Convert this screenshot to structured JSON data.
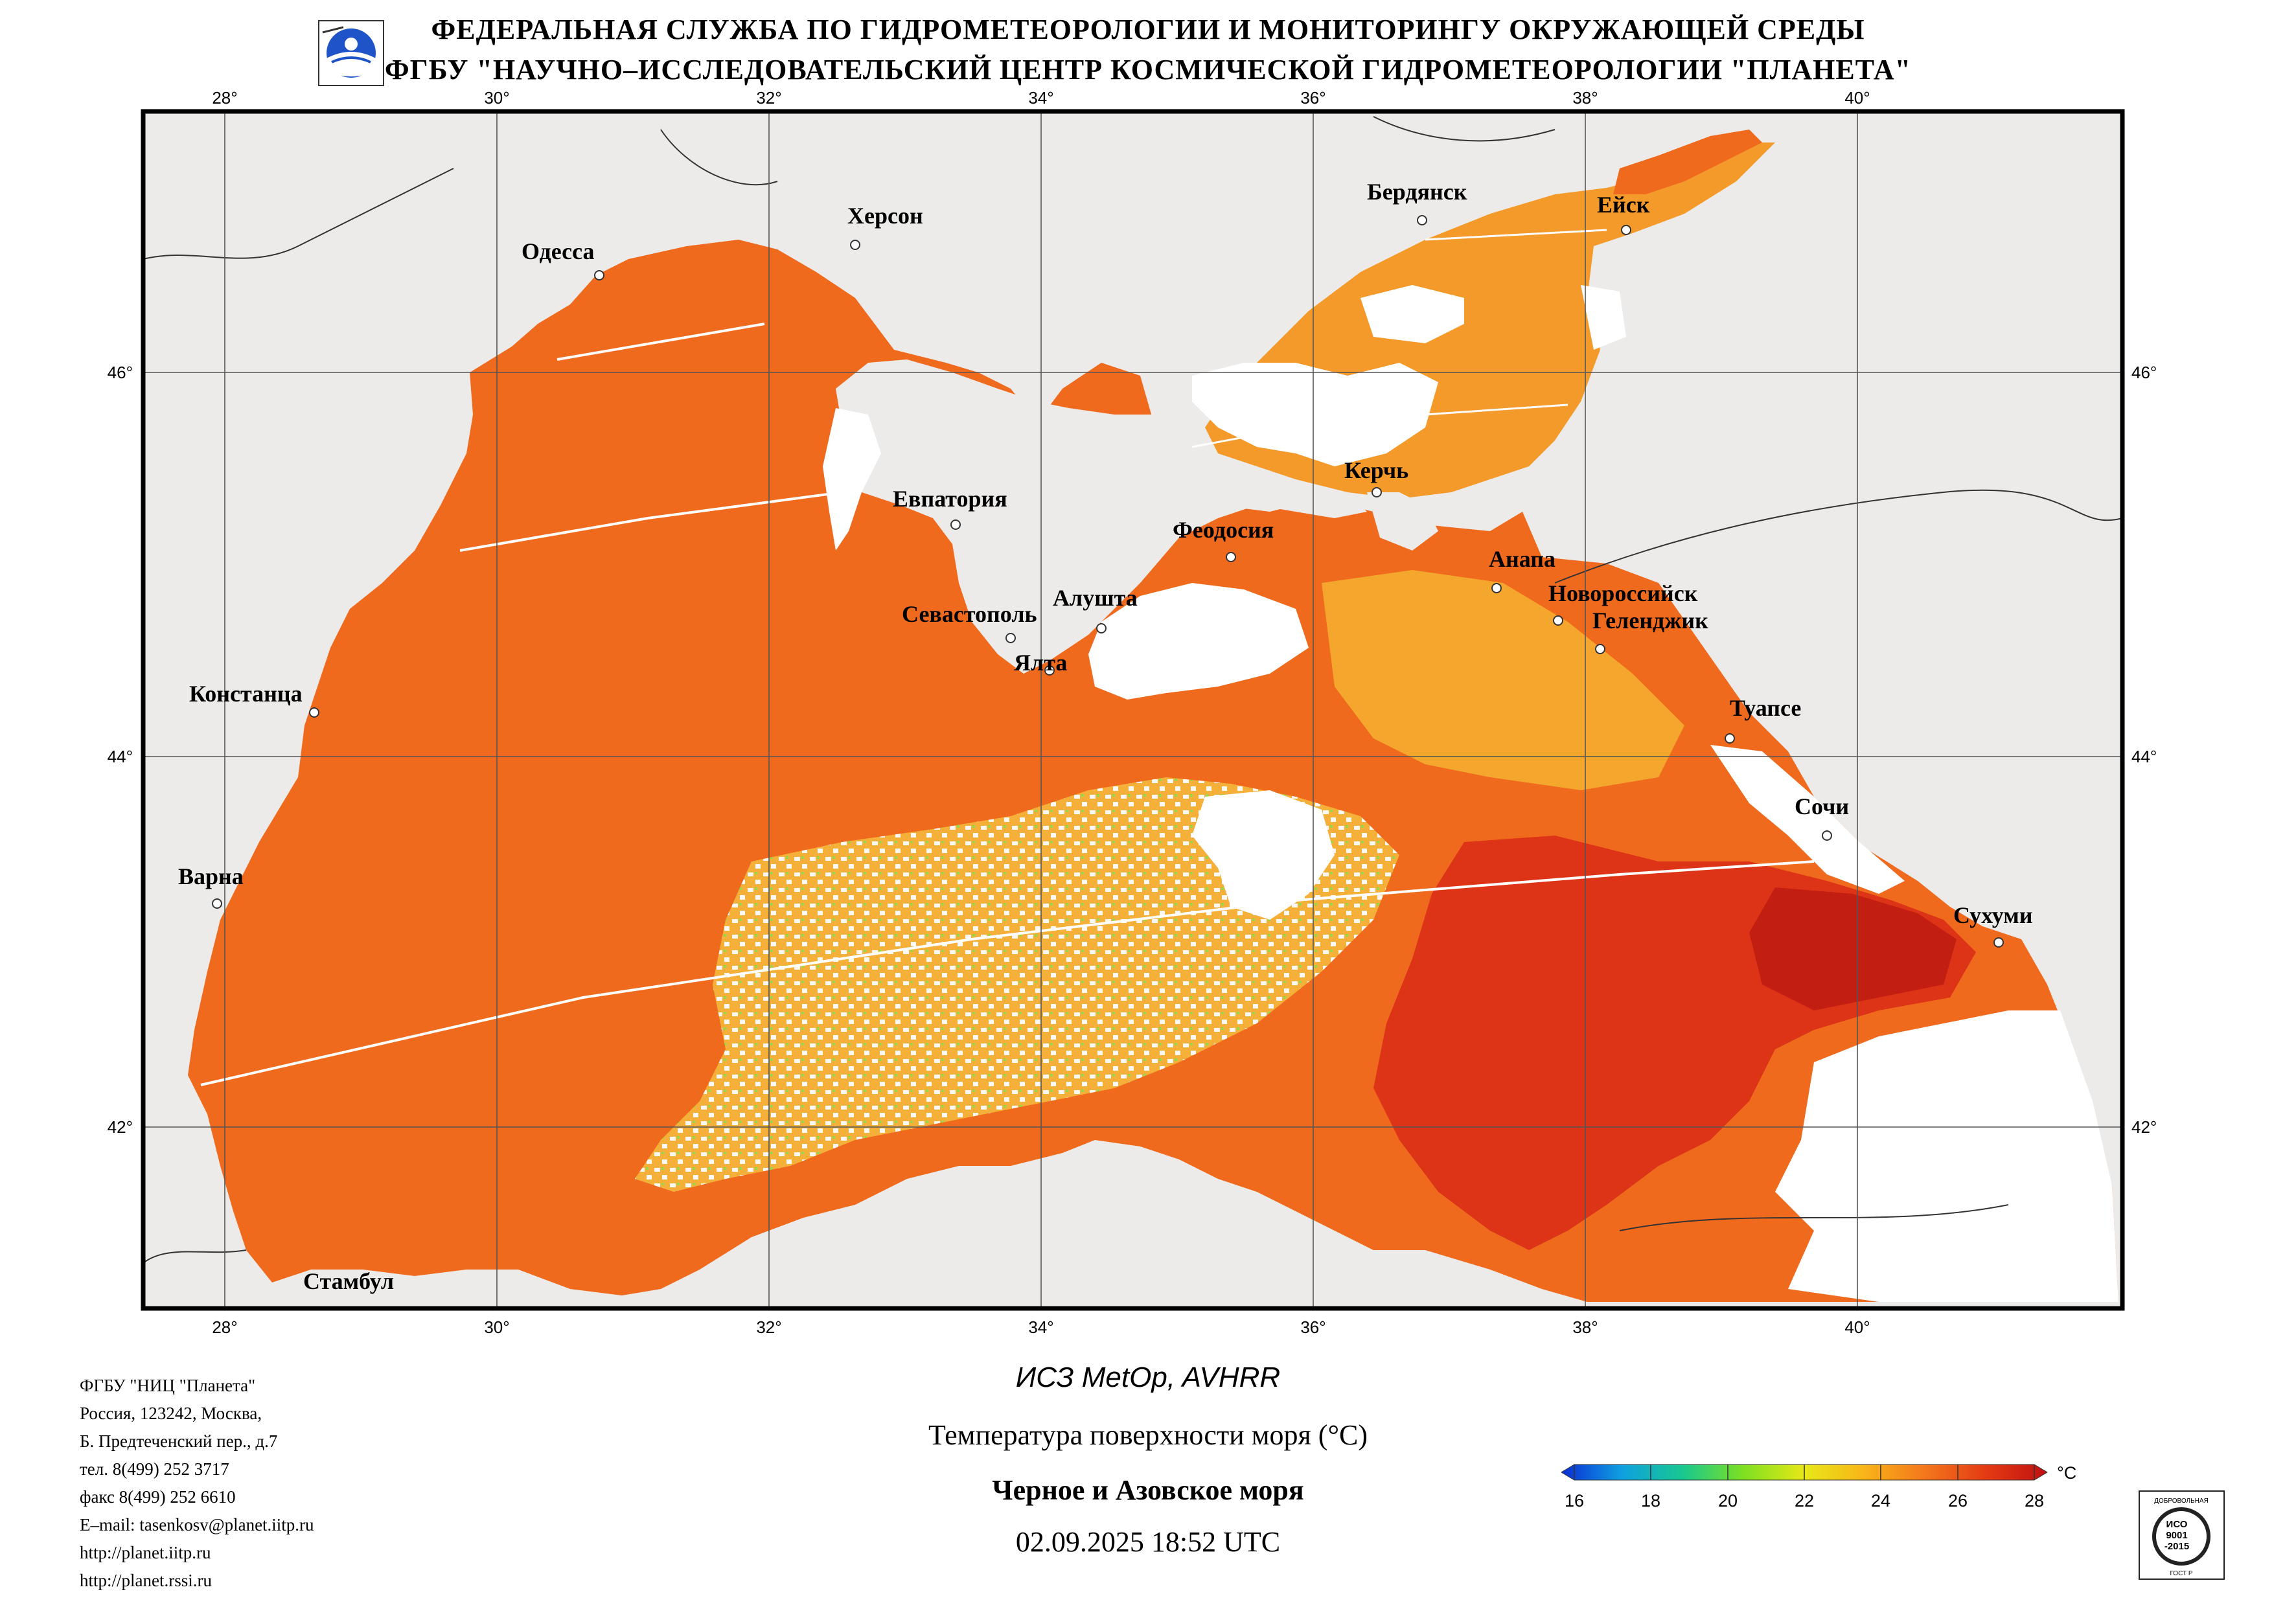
{
  "header": {
    "line1": "ФЕДЕРАЛЬНАЯ СЛУЖБА ПО ГИДРОМЕТЕОРОЛОГИИ И МОНИТОРИНГУ ОКРУЖАЮЩЕЙ СРЕДЫ",
    "line2": "ФГБУ \"НАУЧНО–ИССЛЕДОВАТЕЛЬСКИЙ ЦЕНТР КОСМИЧЕСКОЙ ГИДРОМЕТЕОРОЛОГИИ \"ПЛАНЕТА\""
  },
  "map": {
    "lon_labels": [
      "28°",
      "30°",
      "32°",
      "34°",
      "36°",
      "38°",
      "40°"
    ],
    "lat_labels": [
      "46°",
      "44°",
      "42°"
    ],
    "cities": [
      {
        "name": "Одесса"
      },
      {
        "name": "Херсон"
      },
      {
        "name": "Бердянск"
      },
      {
        "name": "Ейск"
      },
      {
        "name": "Евпатория"
      },
      {
        "name": "Керчь"
      },
      {
        "name": "Феодосия"
      },
      {
        "name": "Анапа"
      },
      {
        "name": "Новороссийск"
      },
      {
        "name": "Геленджик"
      },
      {
        "name": "Алушта"
      },
      {
        "name": "Севастополь"
      },
      {
        "name": "Ялта"
      },
      {
        "name": "Констанца"
      },
      {
        "name": "Туапсе"
      },
      {
        "name": "Сочи"
      },
      {
        "name": "Варна"
      },
      {
        "name": "Сухуми"
      },
      {
        "name": "Стамбул"
      }
    ],
    "colors": {
      "land": "#ecebe9",
      "sea_warm": "#f06a1e",
      "sea_hot": "#d92a14",
      "cloud": "#ffffff",
      "grid": "#555555"
    }
  },
  "footer": {
    "org_lines": [
      "ФГБУ \"НИЦ \"Планета\"",
      "Россия, 123242, Москва,",
      "Б. Предтеченский пер., д.7",
      "тел. 8(499) 252 3717",
      "факс 8(499) 252 6610",
      "E–mail: tasenkosv@planet.iitp.ru",
      "http://planet.iitp.ru",
      "http://planet.rssi.ru"
    ],
    "satellite": "ИСЗ MetOp, AVHRR",
    "parameter": "Температура поверхности моря (°C)",
    "region": "Черное и Азовское моря",
    "datetime": "02.09.2025 18:52 UTC"
  },
  "colorbar": {
    "unit": "°C",
    "ticks": [
      "16",
      "18",
      "20",
      "22",
      "24",
      "26",
      "28"
    ],
    "min": 16,
    "max": 28,
    "colors": [
      "#0a2bd6",
      "#0fa0e0",
      "#18c890",
      "#7ee020",
      "#e8e818",
      "#f8b418",
      "#f4761c",
      "#e43a14",
      "#c01010"
    ]
  },
  "iso_badge": {
    "top": "ДОБРОВОЛЬНАЯ",
    "l1": "ИСО",
    "l2": "9001",
    "l3": "-2015",
    "bottom": "ГОСТ Р"
  }
}
